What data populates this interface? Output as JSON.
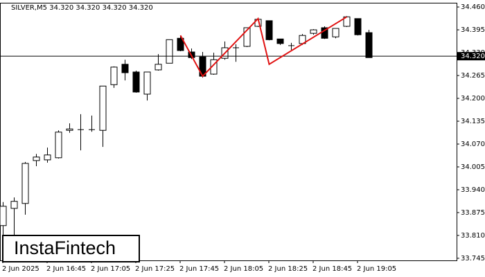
{
  "chart_data": {
    "type": "candlestick",
    "title": "SILVER,M5  34.320 34.320 34.320 34.320",
    "watermark": "InstaFintech",
    "categories": [
      "2 Jun 2025",
      null,
      null,
      null,
      "2 Jun 16:45",
      null,
      null,
      null,
      "2 Jun 17:05",
      null,
      null,
      null,
      "2 Jun 17:25",
      null,
      null,
      null,
      "2 Jun 17:45",
      null,
      null,
      null,
      "2 Jun 18:05",
      null,
      null,
      null,
      "2 Jun 18:25",
      null,
      null,
      null,
      "2 Jun 18:45",
      null,
      null,
      null,
      "2 Jun 19:05",
      null
    ],
    "open": [
      33.838,
      33.887,
      33.901,
      34.023,
      34.025,
      34.031,
      34.109,
      34.111,
      34.111,
      34.109,
      34.239,
      34.297,
      34.275,
      34.212,
      34.281,
      34.3,
      34.371,
      34.332,
      34.318,
      34.269,
      34.314,
      34.344,
      34.348,
      34.405,
      34.421,
      34.369,
      34.35,
      34.356,
      34.385,
      34.401,
      34.375,
      34.405,
      34.427,
      34.387
    ],
    "high": [
      33.905,
      33.918,
      34.019,
      34.042,
      34.06,
      34.109,
      34.129,
      34.155,
      34.151,
      34.235,
      34.291,
      34.31,
      34.279,
      34.275,
      34.326,
      34.367,
      34.379,
      34.342,
      34.332,
      34.33,
      34.362,
      34.354,
      34.401,
      34.427,
      34.421,
      34.369,
      34.358,
      34.383,
      34.397,
      34.405,
      34.399,
      34.434,
      34.427,
      34.395
    ],
    "low": [
      33.786,
      33.81,
      33.869,
      34.007,
      34.017,
      34.029,
      34.102,
      34.052,
      34.105,
      34.062,
      34.23,
      34.251,
      34.216,
      34.194,
      34.279,
      34.3,
      34.334,
      34.312,
      34.259,
      34.267,
      34.31,
      34.304,
      34.346,
      34.403,
      34.365,
      34.352,
      34.338,
      34.352,
      34.381,
      34.369,
      34.371,
      34.403,
      34.379,
      34.316
    ],
    "close": [
      33.893,
      33.907,
      34.015,
      34.033,
      34.039,
      34.104,
      34.113,
      34.111,
      34.111,
      34.235,
      34.289,
      34.273,
      34.218,
      34.275,
      34.297,
      34.367,
      34.336,
      34.316,
      34.263,
      34.31,
      34.344,
      34.344,
      34.401,
      34.425,
      34.367,
      34.356,
      34.35,
      34.379,
      34.395,
      34.371,
      34.399,
      34.432,
      34.381,
      34.316
    ],
    "up_color": "#ffffff",
    "down_color": "#000000",
    "ylim": [
      33.739,
      34.472
    ],
    "yticks": [
      {
        "value": 34.46,
        "label": "34.460"
      },
      34.395,
      {
        "value": 34.33,
        "label": "34.330"
      },
      34.265,
      {
        "value": 34.2,
        "label": "34.200"
      },
      34.135,
      {
        "value": 34.07,
        "label": "34.070"
      },
      34.005,
      {
        "value": 33.94,
        "label": "33.940"
      },
      33.875,
      {
        "value": 33.81,
        "label": "33.810"
      },
      33.745
    ],
    "price_line": {
      "value": 34.32,
      "label": "34.320"
    },
    "pattern": {
      "color": "#e01010",
      "x": [
        16,
        18,
        23,
        24,
        31
      ],
      "values": [
        34.379,
        34.263,
        34.427,
        34.297,
        34.432
      ]
    }
  }
}
